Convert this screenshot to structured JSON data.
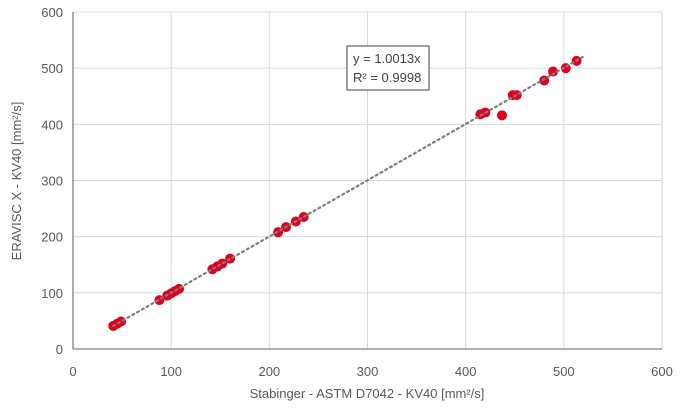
{
  "chart_data": {
    "type": "scatter",
    "title": "",
    "xlabel": "Stabinger - ASTM D7042 - KV40 [mm²/s]",
    "ylabel": "ERAVISC X - KV40 [mm²/s]",
    "xlim": [
      0,
      600
    ],
    "ylim": [
      0,
      600
    ],
    "xticks": [
      0,
      100,
      200,
      300,
      400,
      500,
      600
    ],
    "yticks": [
      0,
      100,
      200,
      300,
      400,
      500,
      600
    ],
    "grid": true,
    "legend": "none",
    "series": [
      {
        "name": "KV40",
        "color": "#E00020",
        "points": [
          [
            41,
            41
          ],
          [
            45,
            45
          ],
          [
            49,
            49
          ],
          [
            88,
            87
          ],
          [
            96,
            95
          ],
          [
            100,
            99
          ],
          [
            104,
            103
          ],
          [
            108,
            107
          ],
          [
            142,
            142
          ],
          [
            147,
            147
          ],
          [
            152,
            152
          ],
          [
            160,
            161
          ],
          [
            209,
            208
          ],
          [
            217,
            217
          ],
          [
            227,
            227
          ],
          [
            235,
            235
          ],
          [
            415,
            418
          ],
          [
            420,
            421
          ],
          [
            437,
            416
          ],
          [
            448,
            452
          ],
          [
            452,
            452
          ],
          [
            480,
            478
          ],
          [
            489,
            494
          ],
          [
            502,
            500
          ],
          [
            513,
            513
          ]
        ]
      }
    ],
    "trendline": {
      "type": "linear-through-origin",
      "slope": 1.0013,
      "x_range": [
        41,
        513
      ],
      "style": "dotted",
      "color": "#7F7F7F"
    },
    "annotations": [
      {
        "text": "y = 1.0013x",
        "line": 1
      },
      {
        "text": "R² = 0.9998",
        "line": 2
      }
    ]
  },
  "equation_box": {
    "line1": "y = 1.0013x",
    "line2": "R² = 0.9998"
  },
  "labels": {
    "x": "Stabinger - ASTM D7042 - KV40 [mm²/s]",
    "y": "ERAVISC X - KV40 [mm²/s]"
  }
}
